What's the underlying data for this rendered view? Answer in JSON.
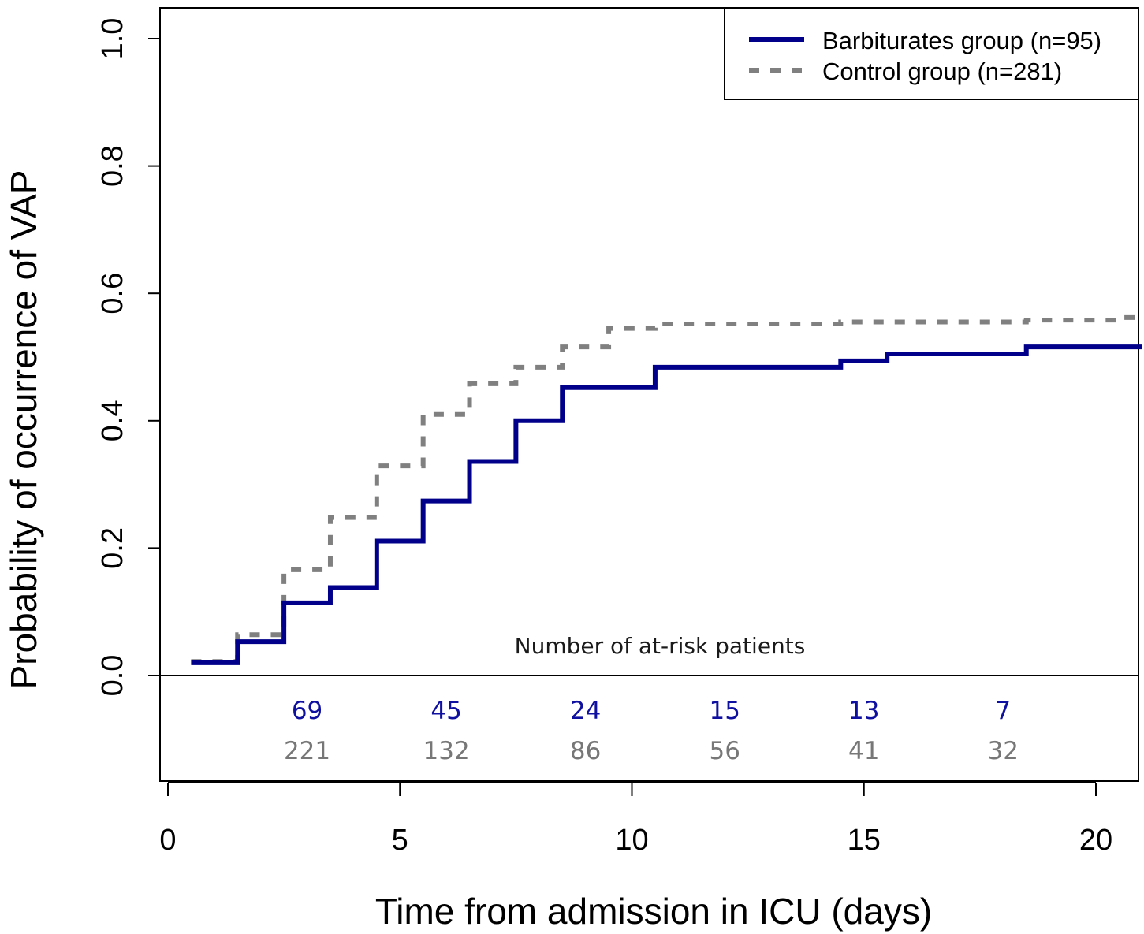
{
  "chart_data": {
    "type": "line",
    "subtype": "kaplan-meier step curve",
    "xlabel": "Time from admission in ICU (days)",
    "ylabel": "Probability of occurrence of VAP",
    "xlim": [
      0,
      21
    ],
    "ylim": [
      0,
      1.0
    ],
    "xticks": [
      "0",
      "5",
      "10",
      "15",
      "20"
    ],
    "yticks": [
      "0.0",
      "0.2",
      "0.4",
      "0.6",
      "0.8",
      "1.0"
    ],
    "grid": false,
    "legend_position": "top-right",
    "series": [
      {
        "name": "Barbiturates group (n=95)",
        "color": "#00008b",
        "style": "solid",
        "x": [
          0.5,
          1.5,
          2.5,
          3.5,
          4.5,
          5.5,
          6.5,
          7.5,
          8.5,
          10.5,
          14.5,
          15.5,
          18.5,
          21
        ],
        "y": [
          0.02,
          0.053,
          0.114,
          0.138,
          0.211,
          0.274,
          0.336,
          0.4,
          0.452,
          0.484,
          0.494,
          0.505,
          0.516,
          0.516
        ]
      },
      {
        "name": "Control group (n=281)",
        "color": "#808080",
        "style": "dashed",
        "x": [
          0.5,
          1.5,
          2.5,
          3.5,
          4.5,
          5.5,
          6.5,
          7.5,
          8.5,
          9.5,
          10.5,
          14.5,
          18.5,
          20.5,
          21
        ],
        "y": [
          0.022,
          0.064,
          0.166,
          0.248,
          0.329,
          0.41,
          0.458,
          0.484,
          0.516,
          0.545,
          0.552,
          0.555,
          0.558,
          0.562,
          0.562
        ]
      }
    ],
    "at_risk": {
      "label": "Number of at-risk patients",
      "x": [
        3,
        6,
        9,
        12,
        15,
        18
      ],
      "barbiturates": [
        "69",
        "45",
        "24",
        "15",
        "13",
        "7"
      ],
      "control": [
        "221",
        "132",
        "86",
        "56",
        "41",
        "32"
      ],
      "barbiturates_color": "#1010a0",
      "control_color": "#777777"
    }
  }
}
